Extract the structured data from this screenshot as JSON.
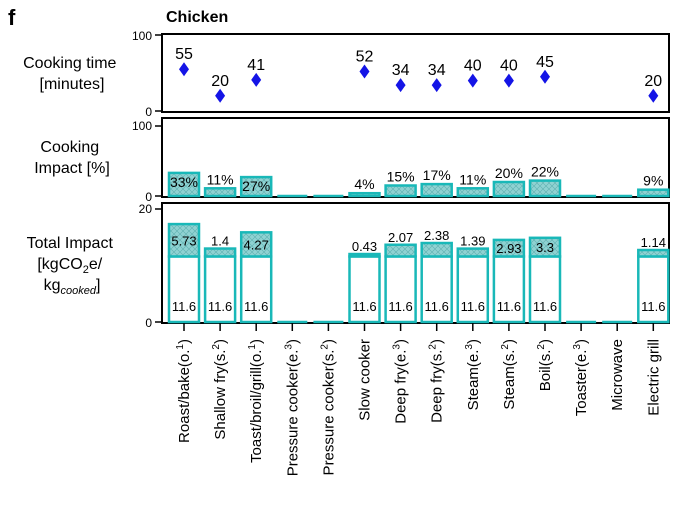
{
  "panel_letter": "f",
  "colors": {
    "marker": "#1414e6",
    "bar_stroke": "#19b8b8",
    "bar_fill": "#8fd2d2",
    "axis": "#000000"
  },
  "chart_data": [
    {
      "type": "scatter",
      "title": "Chicken",
      "ylabel": [
        "Cooking time",
        "[minutes]"
      ],
      "ylim": [
        0,
        100
      ],
      "yticks": [
        "0",
        "100"
      ],
      "marker": "diamond",
      "categories": [
        "Roast/bake(o.1)",
        "Shallow fry(s.2)",
        "Toast/broil/grill(o.1)",
        "Pressure cooker(e.3)",
        "Pressure cooker(s.2)",
        "Slow cooker",
        "Deep fry(e.3)",
        "Deep fry(s.2)",
        "Steam(e.3)",
        "Steam(s.2)",
        "Boil(s.2)",
        "Toaster(e.3)",
        "Microwave",
        "Electric grill"
      ],
      "values": [
        55,
        20,
        41,
        null,
        null,
        52,
        34,
        34,
        40,
        40,
        45,
        null,
        null,
        20
      ],
      "labels": [
        "55",
        "20",
        "41",
        "",
        "",
        "52",
        "34",
        "34",
        "40",
        "40",
        "45",
        "",
        "",
        "20"
      ]
    },
    {
      "type": "bar",
      "ylabel": [
        "Cooking",
        "Impact [%]"
      ],
      "ylim": [
        0,
        100
      ],
      "yticks": [
        "0",
        "100"
      ],
      "categories": [
        "Roast/bake(o.1)",
        "Shallow fry(s.2)",
        "Toast/broil/grill(o.1)",
        "Pressure cooker(e.3)",
        "Pressure cooker(s.2)",
        "Slow cooker",
        "Deep fry(e.3)",
        "Deep fry(s.2)",
        "Steam(e.3)",
        "Steam(s.2)",
        "Boil(s.2)",
        "Toaster(e.3)",
        "Microwave",
        "Electric grill"
      ],
      "values": [
        33,
        11,
        27,
        0,
        0,
        4,
        15,
        17,
        11,
        20,
        22,
        0,
        0,
        9
      ],
      "labels": [
        "33%",
        "11%",
        "27%",
        "",
        "",
        "4%",
        "15%",
        "17%",
        "11%",
        "20%",
        "22%",
        "",
        "",
        "9%"
      ]
    },
    {
      "type": "bar",
      "stacked": true,
      "ylabel": [
        "Total Impact",
        "[kgCO",
        "2",
        "e/",
        "kg",
        "cooked",
        "]"
      ],
      "ylim": [
        0,
        20
      ],
      "yticks": [
        "0",
        "20"
      ],
      "categories": [
        "Roast/bake(o.1)",
        "Shallow fry(s.2)",
        "Toast/broil/grill(o.1)",
        "Pressure cooker(e.3)",
        "Pressure cooker(s.2)",
        "Slow cooker",
        "Deep fry(e.3)",
        "Deep fry(s.2)",
        "Steam(e.3)",
        "Steam(s.2)",
        "Boil(s.2)",
        "Toaster(e.3)",
        "Microwave",
        "Electric grill"
      ],
      "series": [
        {
          "values": [
            11.6,
            11.6,
            11.6,
            0,
            0,
            11.6,
            11.6,
            11.6,
            11.6,
            11.6,
            11.6,
            0,
            0,
            11.6
          ],
          "labels": [
            "11.6",
            "11.6",
            "11.6",
            "",
            "",
            "11.6",
            "11.6",
            "11.6",
            "11.6",
            "11.6",
            "11.6",
            "",
            "",
            "11.6"
          ]
        },
        {
          "values": [
            5.73,
            1.4,
            4.27,
            0,
            0,
            0.43,
            2.07,
            2.38,
            1.39,
            2.93,
            3.3,
            0,
            0,
            1.14
          ],
          "labels": [
            "5.73",
            "1.4",
            "4.27",
            "",
            "",
            "0.43",
            "2.07",
            "2.38",
            "1.39",
            "2.93",
            "3.3",
            "",
            "",
            "1.14"
          ]
        }
      ]
    }
  ],
  "x_labels": [
    {
      "text": "Roast/bake(o.",
      "sup": "1",
      "tail": ")"
    },
    {
      "text": "Shallow fry(s.",
      "sup": "2",
      "tail": ")"
    },
    {
      "text": "Toast/broil/grill(o.",
      "sup": "1",
      "tail": ")"
    },
    {
      "text": "Pressure cooker(e.",
      "sup": "3",
      "tail": ")"
    },
    {
      "text": "Pressure cooker(s.",
      "sup": "2",
      "tail": ")"
    },
    {
      "text": "Slow cooker",
      "sup": "",
      "tail": ""
    },
    {
      "text": "Deep fry(e.",
      "sup": "3",
      "tail": ")"
    },
    {
      "text": "Deep fry(s.",
      "sup": "2",
      "tail": ")"
    },
    {
      "text": "Steam(e.",
      "sup": "3",
      "tail": ")"
    },
    {
      "text": "Steam(s.",
      "sup": "2",
      "tail": ")"
    },
    {
      "text": "Boil(s.",
      "sup": "2",
      "tail": ")"
    },
    {
      "text": "Toaster(e.",
      "sup": "3",
      "tail": ")"
    },
    {
      "text": "Microwave",
      "sup": "",
      "tail": ""
    },
    {
      "text": "Electric grill",
      "sup": "",
      "tail": ""
    }
  ]
}
